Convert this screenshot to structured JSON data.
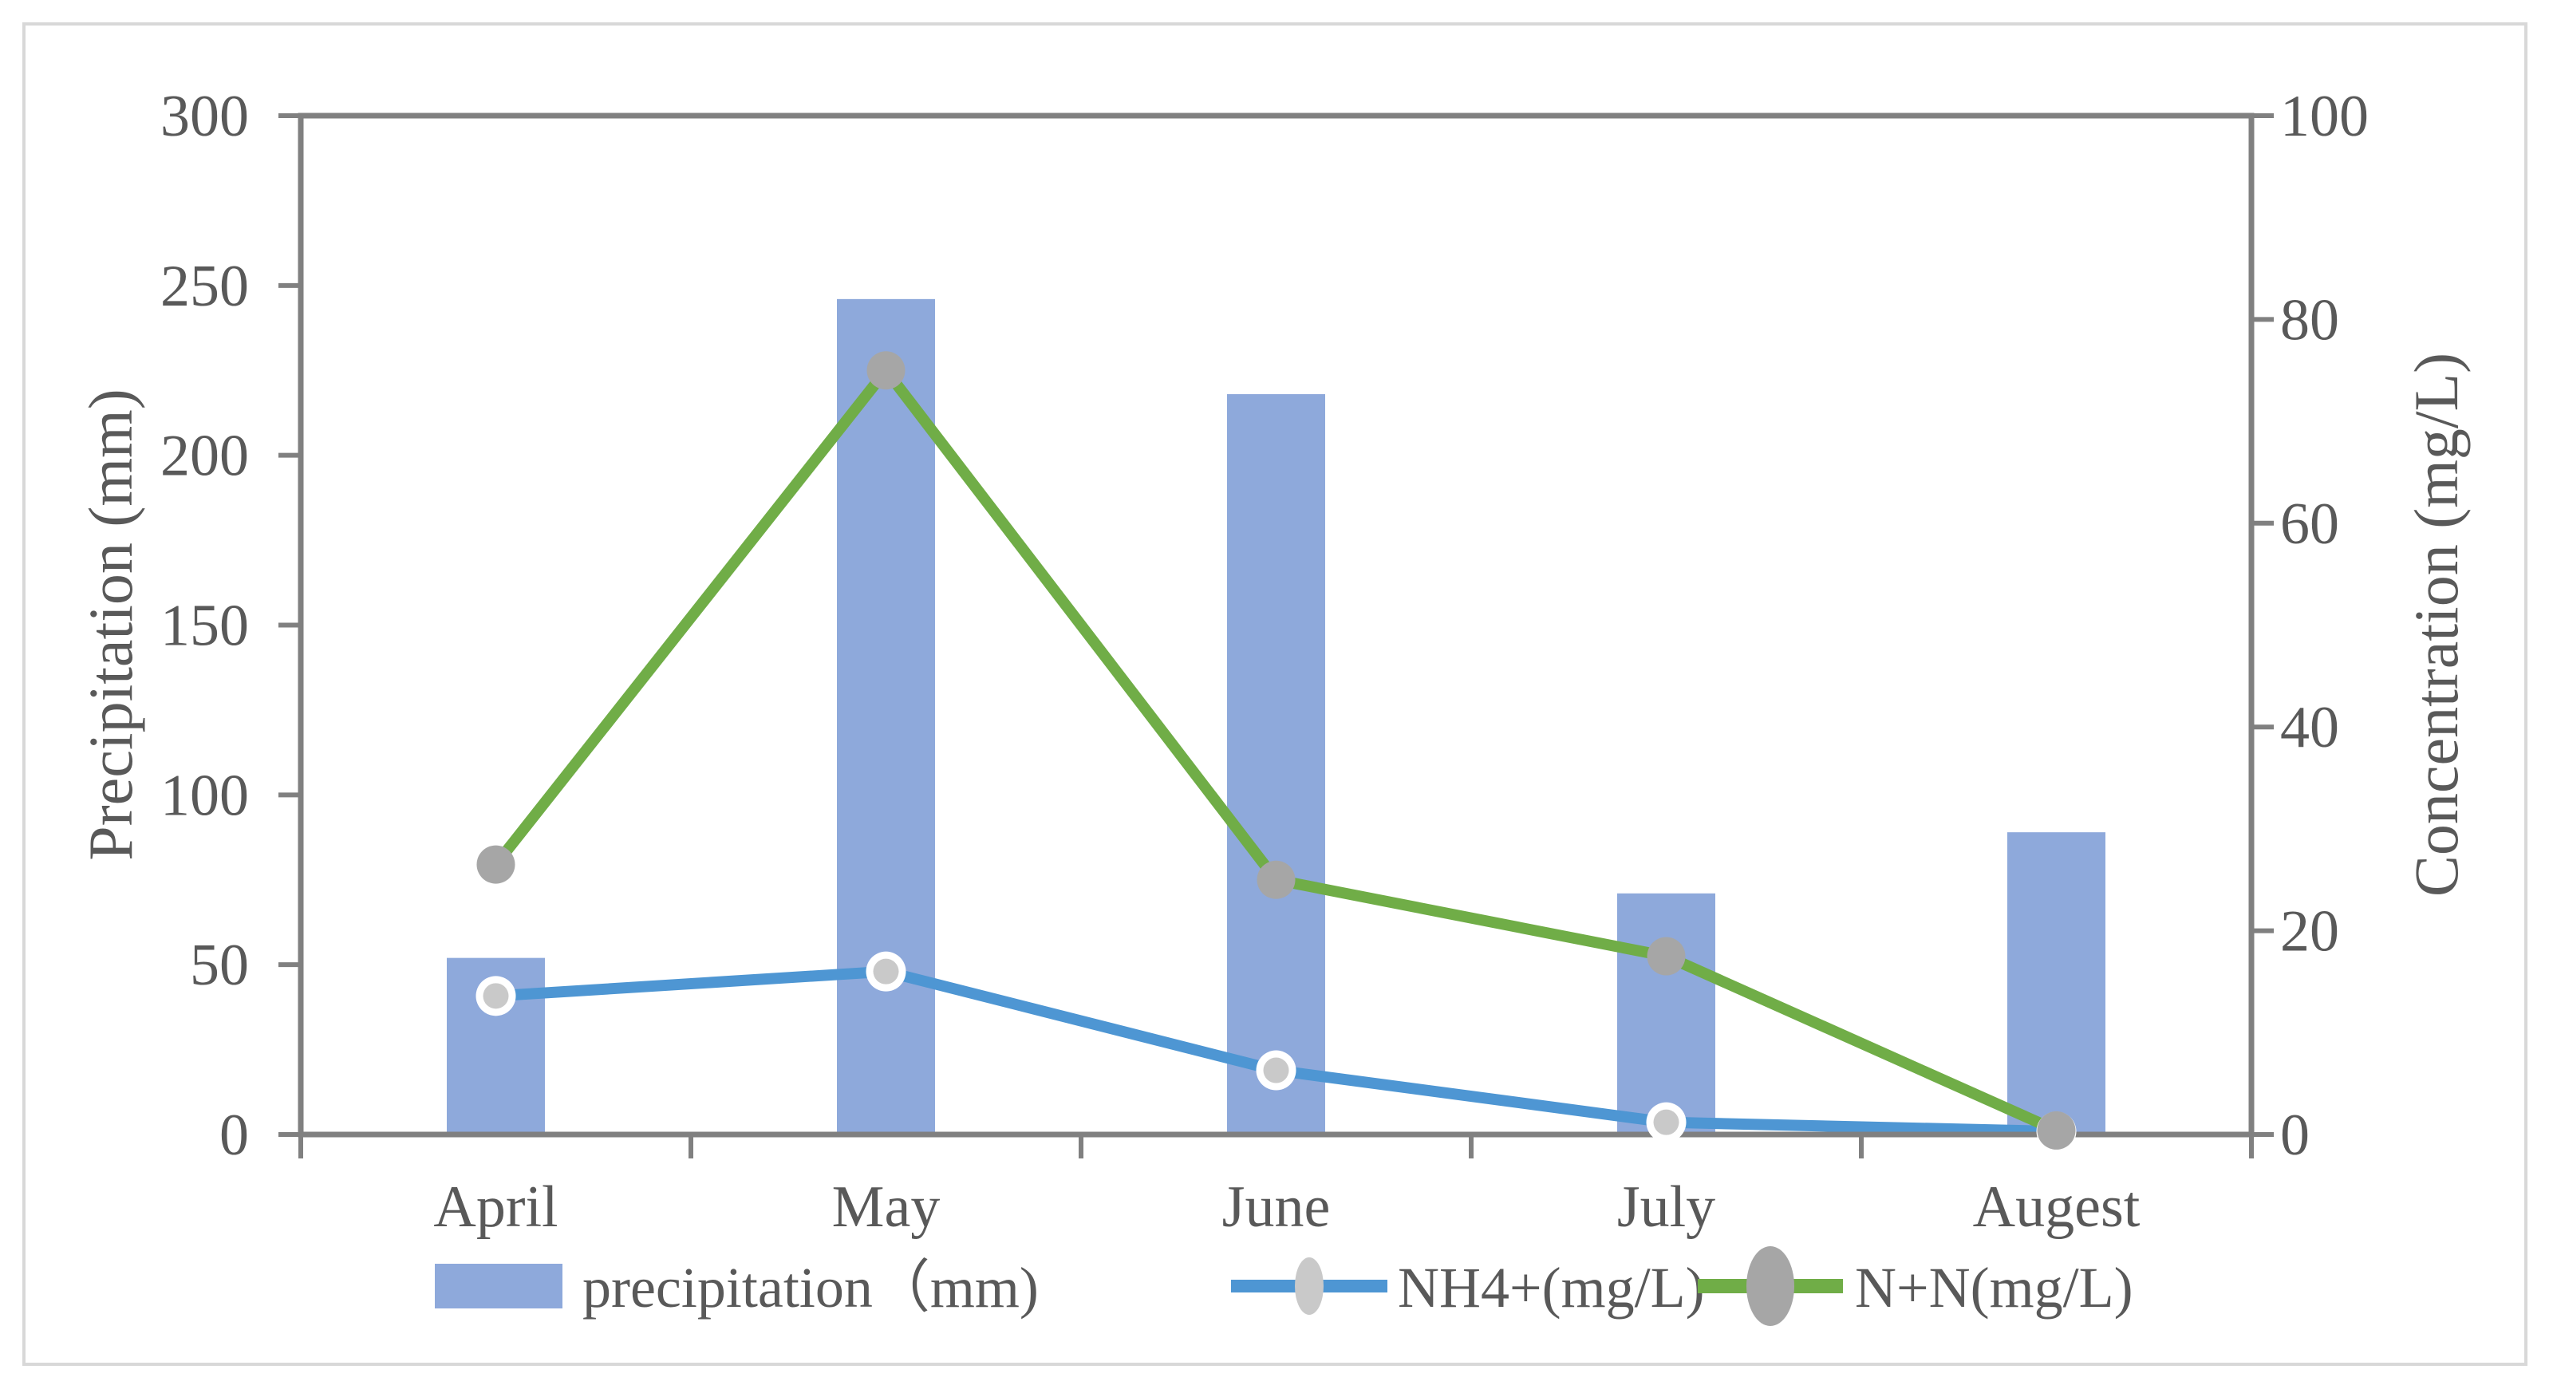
{
  "figure": {
    "border_color": "#d8d8d8",
    "background": "#ffffff",
    "axis_color": "#808080",
    "text_color": "#595959"
  },
  "chart_data": {
    "type": "combo-bar-line",
    "grid": false,
    "legend_position": "bottom",
    "categories": [
      "April",
      "May",
      "June",
      "July",
      "Augest"
    ],
    "series": [
      {
        "name": "precipitation（mm)",
        "type": "bar",
        "axis": "left",
        "color": "#8ea9db",
        "values": [
          52,
          246,
          218,
          71,
          89
        ]
      },
      {
        "name": "NH4+(mg/L)",
        "type": "line",
        "axis": "right",
        "color": "#4e96d3",
        "marker_fill": "#c9c9c9",
        "marker_ring": "#ffffff",
        "values": [
          13.6,
          16,
          6.3,
          1.2,
          0.3
        ]
      },
      {
        "name": "N+N(mg/L)",
        "type": "line",
        "axis": "right",
        "color": "#70ad47",
        "marker_fill": "#a6a6a6",
        "values": [
          26.5,
          75,
          25,
          17.5,
          0.4
        ]
      }
    ],
    "left_axis": {
      "title": "Precipitation (mm)",
      "min": 0,
      "max": 300,
      "step": 50,
      "ticks": [
        0,
        50,
        100,
        150,
        200,
        250,
        300
      ]
    },
    "right_axis": {
      "title": "Concentration (mg/L)",
      "min": 0,
      "max": 100,
      "step": 20,
      "ticks": [
        0,
        20,
        40,
        60,
        80,
        100
      ]
    },
    "x_axis": {
      "labels": [
        "April",
        "May",
        "June",
        "July",
        "Augest"
      ]
    }
  }
}
